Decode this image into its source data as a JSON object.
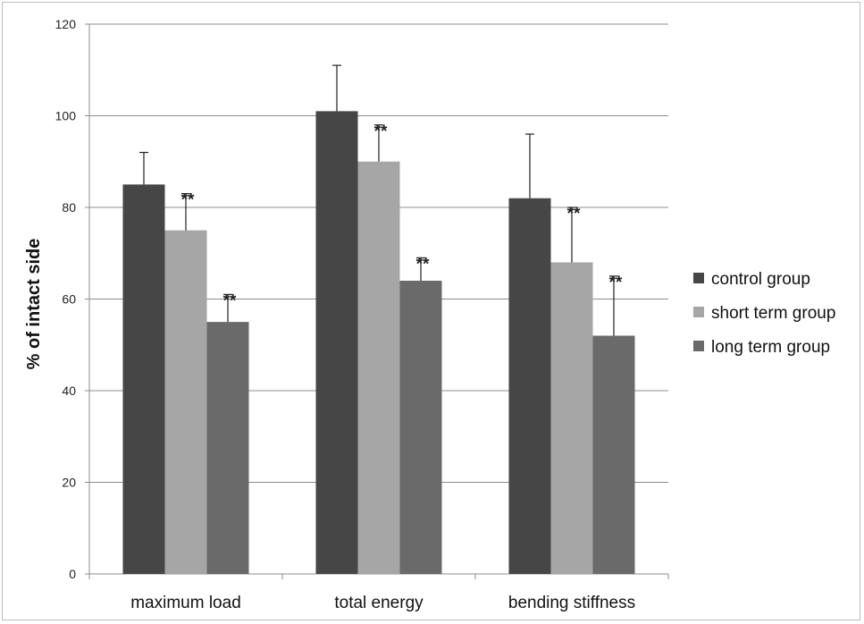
{
  "chart_data": {
    "type": "bar",
    "title": "",
    "xlabel": "",
    "ylabel": "% of intact side",
    "ylim": [
      0,
      120
    ],
    "yticks": [
      0,
      20,
      40,
      60,
      80,
      100,
      120
    ],
    "grid": true,
    "legend_position": "right",
    "categories": [
      "maximum load",
      "total energy",
      "bending stiffness"
    ],
    "series": [
      {
        "name": "control group",
        "color": "#464646",
        "values": [
          85,
          101,
          82
        ],
        "errors": [
          7,
          10,
          14
        ],
        "annotations": [
          "",
          "",
          ""
        ]
      },
      {
        "name": "short term group",
        "color": "#a6a6a6",
        "values": [
          75,
          90,
          68
        ],
        "errors": [
          8,
          8,
          12
        ],
        "annotations": [
          "**",
          "**",
          "**"
        ]
      },
      {
        "name": "long term group",
        "color": "#6a6a6a",
        "values": [
          55,
          64,
          52
        ],
        "errors": [
          6,
          5,
          13
        ],
        "annotations": [
          "**",
          "**",
          "**"
        ]
      }
    ]
  }
}
